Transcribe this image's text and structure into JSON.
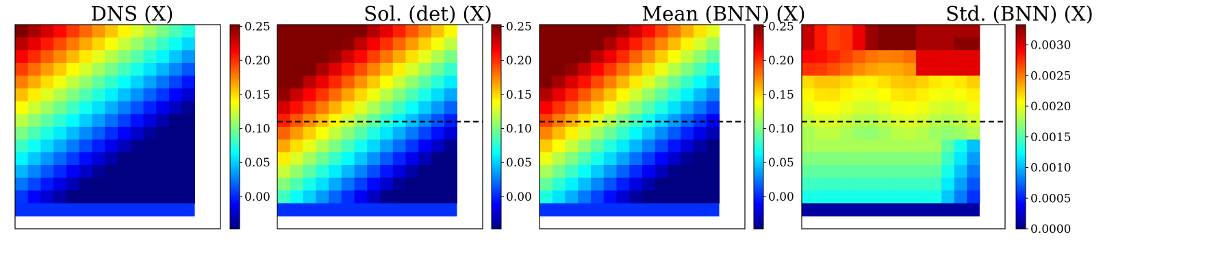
{
  "chart_data": [
    {
      "type": "heatmap",
      "title": "DNS (X)",
      "colorbar": {
        "min": -0.0474,
        "max": 0.2526,
        "ticks": [
          "0.25",
          "0.20",
          "0.15",
          "0.10",
          "0.05",
          "0.00"
        ],
        "tick_values": [
          0.25,
          0.2,
          0.15,
          0.1,
          0.05,
          0.0
        ]
      },
      "dashed_line": false,
      "grid": {
        "rows": 14,
        "cols": 14,
        "plot_rows": 16,
        "plot_cols": 16,
        "bottom_row": 0.004
      },
      "field": {
        "type": "diag",
        "base": 0.255,
        "k1": 0.0192,
        "k2": 0.014
      }
    },
    {
      "type": "heatmap",
      "title": "Sol. (det) (X)",
      "colorbar": {
        "min": -0.0474,
        "max": 0.2526,
        "ticks": [
          "0.25",
          "0.20",
          "0.15",
          "0.10",
          "0.05",
          "0.00"
        ],
        "tick_values": [
          0.25,
          0.2,
          0.15,
          0.1,
          0.05,
          0.0
        ]
      },
      "dashed_line": true,
      "dashed_line_y_fraction": 0.475,
      "grid": {
        "rows": 14,
        "cols": 14,
        "plot_rows": 16,
        "plot_cols": 16,
        "bottom_row": 0.004
      },
      "field": {
        "type": "diag",
        "base": 0.35,
        "k1": 0.0205,
        "k2": 0.016
      }
    },
    {
      "type": "heatmap",
      "title": "Mean (BNN) (X)",
      "colorbar": {
        "min": -0.0474,
        "max": 0.2526,
        "ticks": [
          "0.25",
          "0.20",
          "0.15",
          "0.10",
          "0.05",
          "0.00"
        ],
        "tick_values": [
          0.25,
          0.2,
          0.15,
          0.1,
          0.05,
          0.0
        ]
      },
      "dashed_line": true,
      "dashed_line_y_fraction": 0.475,
      "grid": {
        "rows": 14,
        "cols": 14,
        "plot_rows": 16,
        "plot_cols": 16,
        "bottom_row": 0.004
      },
      "field": {
        "type": "diag",
        "base": 0.34,
        "k1": 0.0205,
        "k2": 0.016
      }
    },
    {
      "type": "heatmap",
      "title": "Std. (BNN) (X)",
      "colorbar": {
        "min": 0.0,
        "max": 0.00333,
        "ticks": [
          "0.0030",
          "0.0025",
          "0.0020",
          "0.0015",
          "0.0010",
          "0.0005",
          "0.0000"
        ],
        "tick_values": [
          0.003,
          0.0025,
          0.002,
          0.0015,
          0.001,
          0.0005,
          0.0
        ]
      },
      "dashed_line": true,
      "dashed_line_y_fraction": 0.475,
      "grid": {
        "rows": 14,
        "cols": 14,
        "plot_rows": 16,
        "plot_cols": 16,
        "bottom_row": 0.0001
      },
      "field": {
        "type": "std"
      }
    }
  ]
}
